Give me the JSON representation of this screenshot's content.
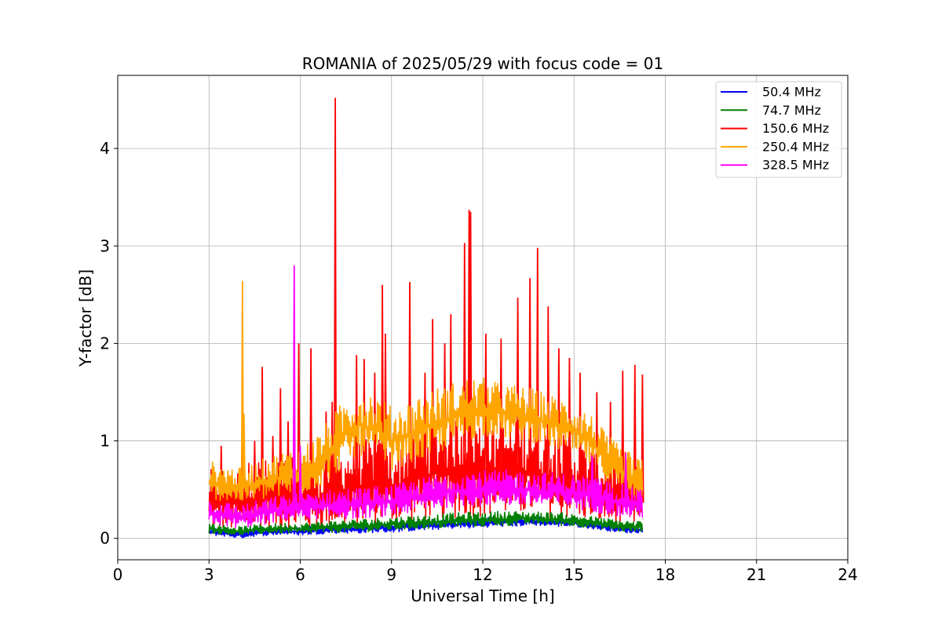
{
  "chart_data": {
    "type": "line",
    "title": "ROMANIA of 2025/05/29 with focus code = 01",
    "xlabel": "Universal Time [h]",
    "ylabel": "Y-factor [dB]",
    "xlim": [
      0,
      24
    ],
    "ylim": [
      -0.22,
      4.75
    ],
    "x_ticks": [
      0,
      3,
      6,
      9,
      12,
      15,
      18,
      21,
      24
    ],
    "x_tick_labels": [
      "0",
      "3",
      "6",
      "9",
      "12",
      "15",
      "18",
      "21",
      "24"
    ],
    "y_ticks": [
      0,
      1,
      2,
      3,
      4
    ],
    "y_tick_labels": [
      "0",
      "1",
      "2",
      "3",
      "4"
    ],
    "grid": true,
    "legend_position": "top-right",
    "series": [
      {
        "name": "50.4 MHz",
        "legend_label": "  50.4 MHz",
        "color": "#0000ff",
        "x": [
          3.0,
          3.5,
          4.0,
          4.5,
          5.0,
          5.5,
          6.0,
          6.5,
          7.0,
          7.5,
          8.0,
          8.5,
          9.0,
          9.5,
          10.0,
          10.5,
          11.0,
          11.5,
          12.0,
          12.5,
          13.0,
          13.5,
          14.0,
          14.5,
          15.0,
          15.5,
          16.0,
          16.5,
          17.0,
          17.25
        ],
        "low": [
          0.03,
          0.02,
          0.0,
          0.02,
          0.03,
          0.04,
          0.03,
          0.04,
          0.05,
          0.05,
          0.05,
          0.06,
          0.06,
          0.07,
          0.08,
          0.09,
          0.1,
          0.1,
          0.11,
          0.12,
          0.12,
          0.13,
          0.13,
          0.12,
          0.12,
          0.1,
          0.08,
          0.06,
          0.05,
          0.06
        ],
        "high": [
          0.12,
          0.1,
          0.08,
          0.1,
          0.11,
          0.12,
          0.12,
          0.13,
          0.14,
          0.15,
          0.15,
          0.16,
          0.17,
          0.18,
          0.19,
          0.2,
          0.2,
          0.21,
          0.21,
          0.22,
          0.22,
          0.23,
          0.22,
          0.22,
          0.2,
          0.18,
          0.16,
          0.14,
          0.13,
          0.13
        ],
        "spikes": []
      },
      {
        "name": "74.7 MHz",
        "legend_label": "  74.7 MHz",
        "color": "#008000",
        "x": [
          3.0,
          3.5,
          4.0,
          4.5,
          5.0,
          5.5,
          6.0,
          6.5,
          7.0,
          7.5,
          8.0,
          8.5,
          9.0,
          9.5,
          10.0,
          10.5,
          11.0,
          11.5,
          12.0,
          12.5,
          13.0,
          13.5,
          14.0,
          14.5,
          15.0,
          15.5,
          16.0,
          16.5,
          17.0,
          17.25
        ],
        "low": [
          0.05,
          0.04,
          0.03,
          0.04,
          0.05,
          0.05,
          0.04,
          0.05,
          0.06,
          0.06,
          0.07,
          0.07,
          0.08,
          0.09,
          0.1,
          0.1,
          0.11,
          0.12,
          0.12,
          0.13,
          0.13,
          0.14,
          0.14,
          0.13,
          0.12,
          0.11,
          0.09,
          0.07,
          0.06,
          0.07
        ],
        "high": [
          0.16,
          0.14,
          0.12,
          0.14,
          0.15,
          0.16,
          0.16,
          0.17,
          0.18,
          0.19,
          0.2,
          0.21,
          0.22,
          0.23,
          0.24,
          0.25,
          0.26,
          0.27,
          0.27,
          0.28,
          0.28,
          0.28,
          0.27,
          0.27,
          0.25,
          0.23,
          0.21,
          0.19,
          0.18,
          0.18
        ],
        "spikes": []
      },
      {
        "name": "150.6 MHz",
        "legend_label": "150.6 MHz",
        "color": "#ff0000",
        "x": [
          3.0,
          3.5,
          4.0,
          4.5,
          5.0,
          5.5,
          6.0,
          6.5,
          7.0,
          7.5,
          8.0,
          8.5,
          9.0,
          9.5,
          10.0,
          10.5,
          11.0,
          11.5,
          12.0,
          12.5,
          13.0,
          13.5,
          14.0,
          14.5,
          15.0,
          15.5,
          16.0,
          16.5,
          17.0,
          17.25
        ],
        "low": [
          0.1,
          0.08,
          0.06,
          0.08,
          0.1,
          0.1,
          0.08,
          0.1,
          0.12,
          0.12,
          0.14,
          0.15,
          0.15,
          0.16,
          0.18,
          0.2,
          0.2,
          0.22,
          0.22,
          0.24,
          0.22,
          0.24,
          0.22,
          0.2,
          0.2,
          0.18,
          0.14,
          0.12,
          0.12,
          0.14
        ],
        "high": [
          0.7,
          0.75,
          0.7,
          0.85,
          0.8,
          0.85,
          0.8,
          0.75,
          0.85,
          0.95,
          1.0,
          1.05,
          0.95,
          1.05,
          1.2,
          1.25,
          1.3,
          1.3,
          1.25,
          1.2,
          1.2,
          1.25,
          1.15,
          1.1,
          1.0,
          0.95,
          0.85,
          0.8,
          0.75,
          0.7
        ],
        "spikes": [
          [
            3.4,
            0.95
          ],
          [
            4.1,
            1.1
          ],
          [
            4.5,
            1.0
          ],
          [
            4.75,
            1.76
          ],
          [
            5.1,
            1.05
          ],
          [
            5.35,
            1.54
          ],
          [
            5.6,
            1.2
          ],
          [
            5.95,
            2.0
          ],
          [
            6.35,
            1.95
          ],
          [
            6.85,
            1.3
          ],
          [
            7.05,
            1.4
          ],
          [
            7.15,
            4.52
          ],
          [
            7.85,
            1.88
          ],
          [
            8.1,
            1.84
          ],
          [
            8.45,
            1.7
          ],
          [
            8.7,
            2.6
          ],
          [
            8.8,
            2.1
          ],
          [
            9.6,
            2.63
          ],
          [
            10.1,
            1.7
          ],
          [
            10.35,
            2.25
          ],
          [
            10.75,
            2.0
          ],
          [
            10.95,
            2.3
          ],
          [
            11.4,
            3.03
          ],
          [
            11.55,
            3.37
          ],
          [
            11.6,
            3.35
          ],
          [
            12.1,
            2.1
          ],
          [
            12.6,
            2.05
          ],
          [
            13.15,
            2.47
          ],
          [
            13.55,
            2.67
          ],
          [
            13.8,
            2.98
          ],
          [
            14.15,
            2.38
          ],
          [
            14.5,
            1.95
          ],
          [
            14.85,
            1.85
          ],
          [
            15.2,
            1.7
          ],
          [
            15.75,
            1.5
          ],
          [
            16.2,
            1.4
          ],
          [
            16.6,
            1.72
          ],
          [
            17.0,
            1.78
          ],
          [
            17.25,
            1.68
          ]
        ]
      },
      {
        "name": "250.4 MHz",
        "legend_label": "250.4 MHz",
        "color": "#ffa500",
        "x": [
          3.0,
          3.5,
          4.0,
          4.5,
          5.0,
          5.5,
          6.0,
          6.5,
          7.0,
          7.5,
          8.0,
          8.5,
          9.0,
          9.5,
          10.0,
          10.5,
          11.0,
          11.5,
          12.0,
          12.5,
          13.0,
          13.5,
          14.0,
          14.5,
          15.0,
          15.5,
          16.0,
          16.5,
          17.0,
          17.25
        ],
        "low": [
          0.4,
          0.38,
          0.36,
          0.38,
          0.4,
          0.42,
          0.45,
          0.5,
          0.6,
          0.75,
          0.85,
          0.8,
          0.7,
          0.75,
          0.8,
          0.85,
          0.95,
          1.0,
          1.05,
          1.05,
          1.0,
          1.0,
          0.95,
          0.9,
          0.85,
          0.75,
          0.6,
          0.5,
          0.4,
          0.38
        ],
        "high": [
          0.8,
          0.75,
          0.72,
          0.78,
          0.85,
          0.9,
          0.95,
          1.05,
          1.25,
          1.45,
          1.55,
          1.5,
          1.35,
          1.4,
          1.5,
          1.55,
          1.6,
          1.65,
          1.65,
          1.6,
          1.58,
          1.55,
          1.5,
          1.45,
          1.4,
          1.3,
          1.1,
          0.95,
          0.85,
          0.8
        ],
        "spikes": [
          [
            4.1,
            2.64
          ],
          [
            4.15,
            1.28
          ]
        ]
      },
      {
        "name": "328.5 MHz",
        "legend_label": "328.5 MHz",
        "color": "#ff00ff",
        "x": [
          3.0,
          3.5,
          4.0,
          4.5,
          5.0,
          5.5,
          6.0,
          6.5,
          7.0,
          7.5,
          8.0,
          8.5,
          9.0,
          9.5,
          10.0,
          10.5,
          11.0,
          11.5,
          12.0,
          12.5,
          13.0,
          13.5,
          14.0,
          14.5,
          15.0,
          15.5,
          16.0,
          16.5,
          17.0,
          17.25
        ],
        "low": [
          0.15,
          0.12,
          0.1,
          0.12,
          0.15,
          0.18,
          0.18,
          0.2,
          0.2,
          0.2,
          0.2,
          0.22,
          0.22,
          0.25,
          0.28,
          0.3,
          0.32,
          0.33,
          0.33,
          0.34,
          0.33,
          0.33,
          0.32,
          0.32,
          0.3,
          0.28,
          0.25,
          0.22,
          0.2,
          0.2
        ],
        "high": [
          0.4,
          0.38,
          0.35,
          0.38,
          0.42,
          0.45,
          0.46,
          0.48,
          0.5,
          0.52,
          0.52,
          0.54,
          0.55,
          0.58,
          0.62,
          0.66,
          0.68,
          0.7,
          0.7,
          0.7,
          0.7,
          0.7,
          0.68,
          0.67,
          0.66,
          0.64,
          0.6,
          0.56,
          0.52,
          0.5
        ],
        "spikes": [
          [
            5.8,
            2.8
          ],
          [
            6.0,
            0.95
          ],
          [
            15.6,
            0.85
          ],
          [
            16.7,
            0.88
          ]
        ]
      }
    ]
  }
}
